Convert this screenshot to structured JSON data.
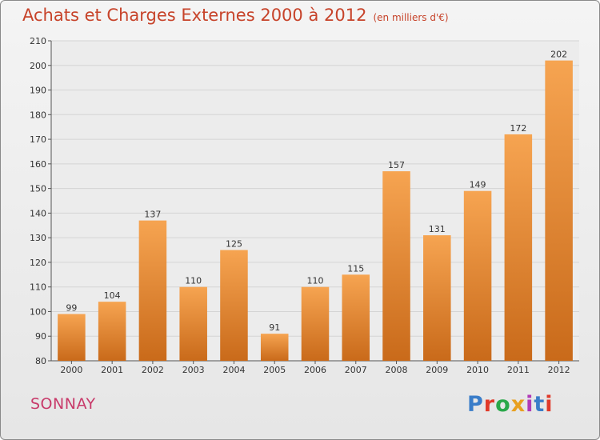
{
  "header": {
    "title": "Achats et Charges Externes 2000 à 2012",
    "unit": "(en milliers d'€)"
  },
  "footer": {
    "commune": "SONNAY",
    "logo_text": "Proxiti",
    "logo_colors": [
      "#3a7dc9",
      "#e03a2a",
      "#2aa84a",
      "#e8a020",
      "#b03ab8",
      "#3a7dc9",
      "#e03a2a"
    ]
  },
  "colors": {
    "bar_top": "#f6a451",
    "bar_bottom": "#c96a1a",
    "grid": "#d4d4d4",
    "title": "#c7432a",
    "commune": "#c83a6a"
  },
  "chart_data": {
    "type": "bar",
    "categories": [
      "2000",
      "2001",
      "2002",
      "2003",
      "2004",
      "2005",
      "2006",
      "2007",
      "2008",
      "2009",
      "2010",
      "2011",
      "2012"
    ],
    "values": [
      99,
      104,
      137,
      110,
      125,
      91,
      110,
      115,
      157,
      131,
      149,
      172,
      202
    ],
    "ylim": [
      80,
      210
    ],
    "yticks": [
      80,
      90,
      100,
      110,
      120,
      130,
      140,
      150,
      160,
      170,
      180,
      190,
      200,
      210
    ],
    "grid": true,
    "data_labels": true
  }
}
